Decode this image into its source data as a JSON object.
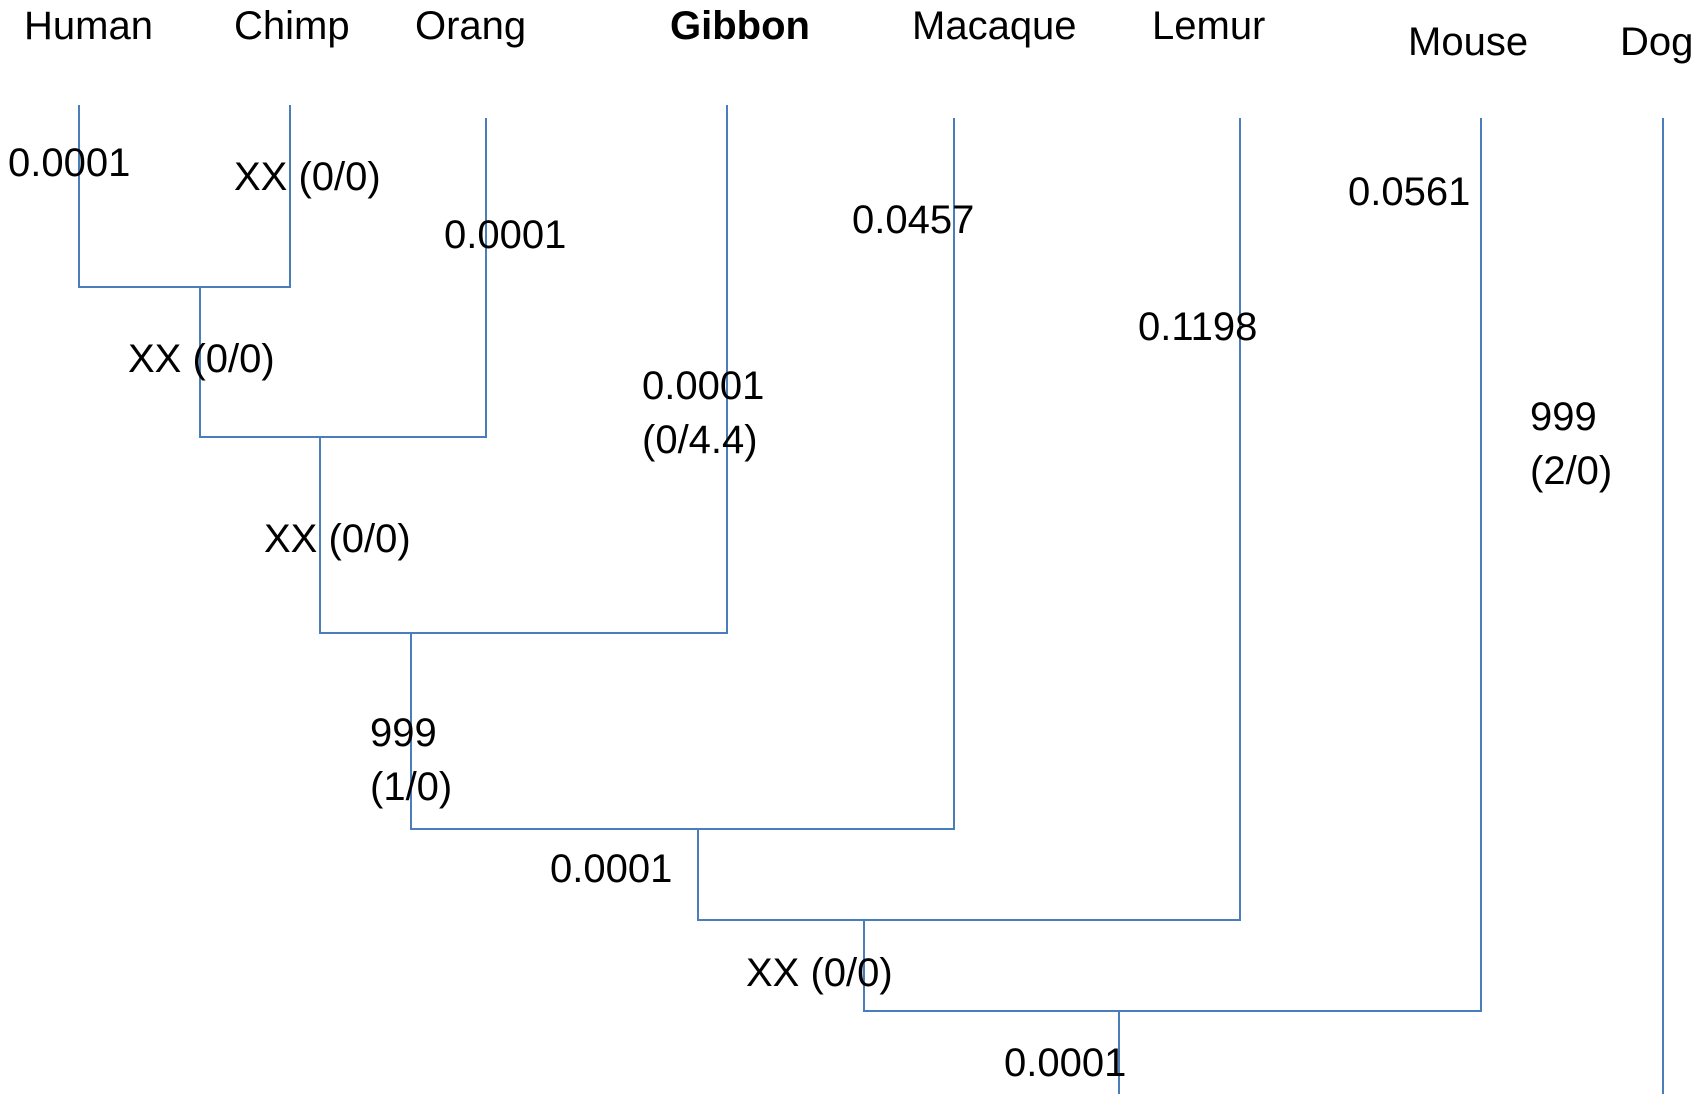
{
  "colors": {
    "branch": "#4a7ebb",
    "text": "#000000"
  },
  "taxa": [
    {
      "id": "human",
      "name": "Human"
    },
    {
      "id": "chimp",
      "name": "Chimp"
    },
    {
      "id": "orang",
      "name": "Orang"
    },
    {
      "id": "gibbon",
      "name": "Gibbon",
      "bold": true
    },
    {
      "id": "macaque",
      "name": "Macaque"
    },
    {
      "id": "lemur",
      "name": "Lemur"
    },
    {
      "id": "mouse",
      "name": "Mouse"
    },
    {
      "id": "dog",
      "name": "Dog"
    }
  ],
  "branch_labels": {
    "human": "0.0001",
    "chimp": "XX (0/0)",
    "orang": "0.0001",
    "gibbon": "0.0001\n(0/4.4)",
    "macaque": "0.0457",
    "lemur": "0.1198",
    "mouse": "0.0561",
    "dog": "999\n(2/0)",
    "human_chimp": "XX (0/0)",
    "hco": "XX (0/0)",
    "apes": "999\n(1/0)",
    "primates_a": "0.0001",
    "primates": "XX (0/0)",
    "root": "0.0001"
  }
}
